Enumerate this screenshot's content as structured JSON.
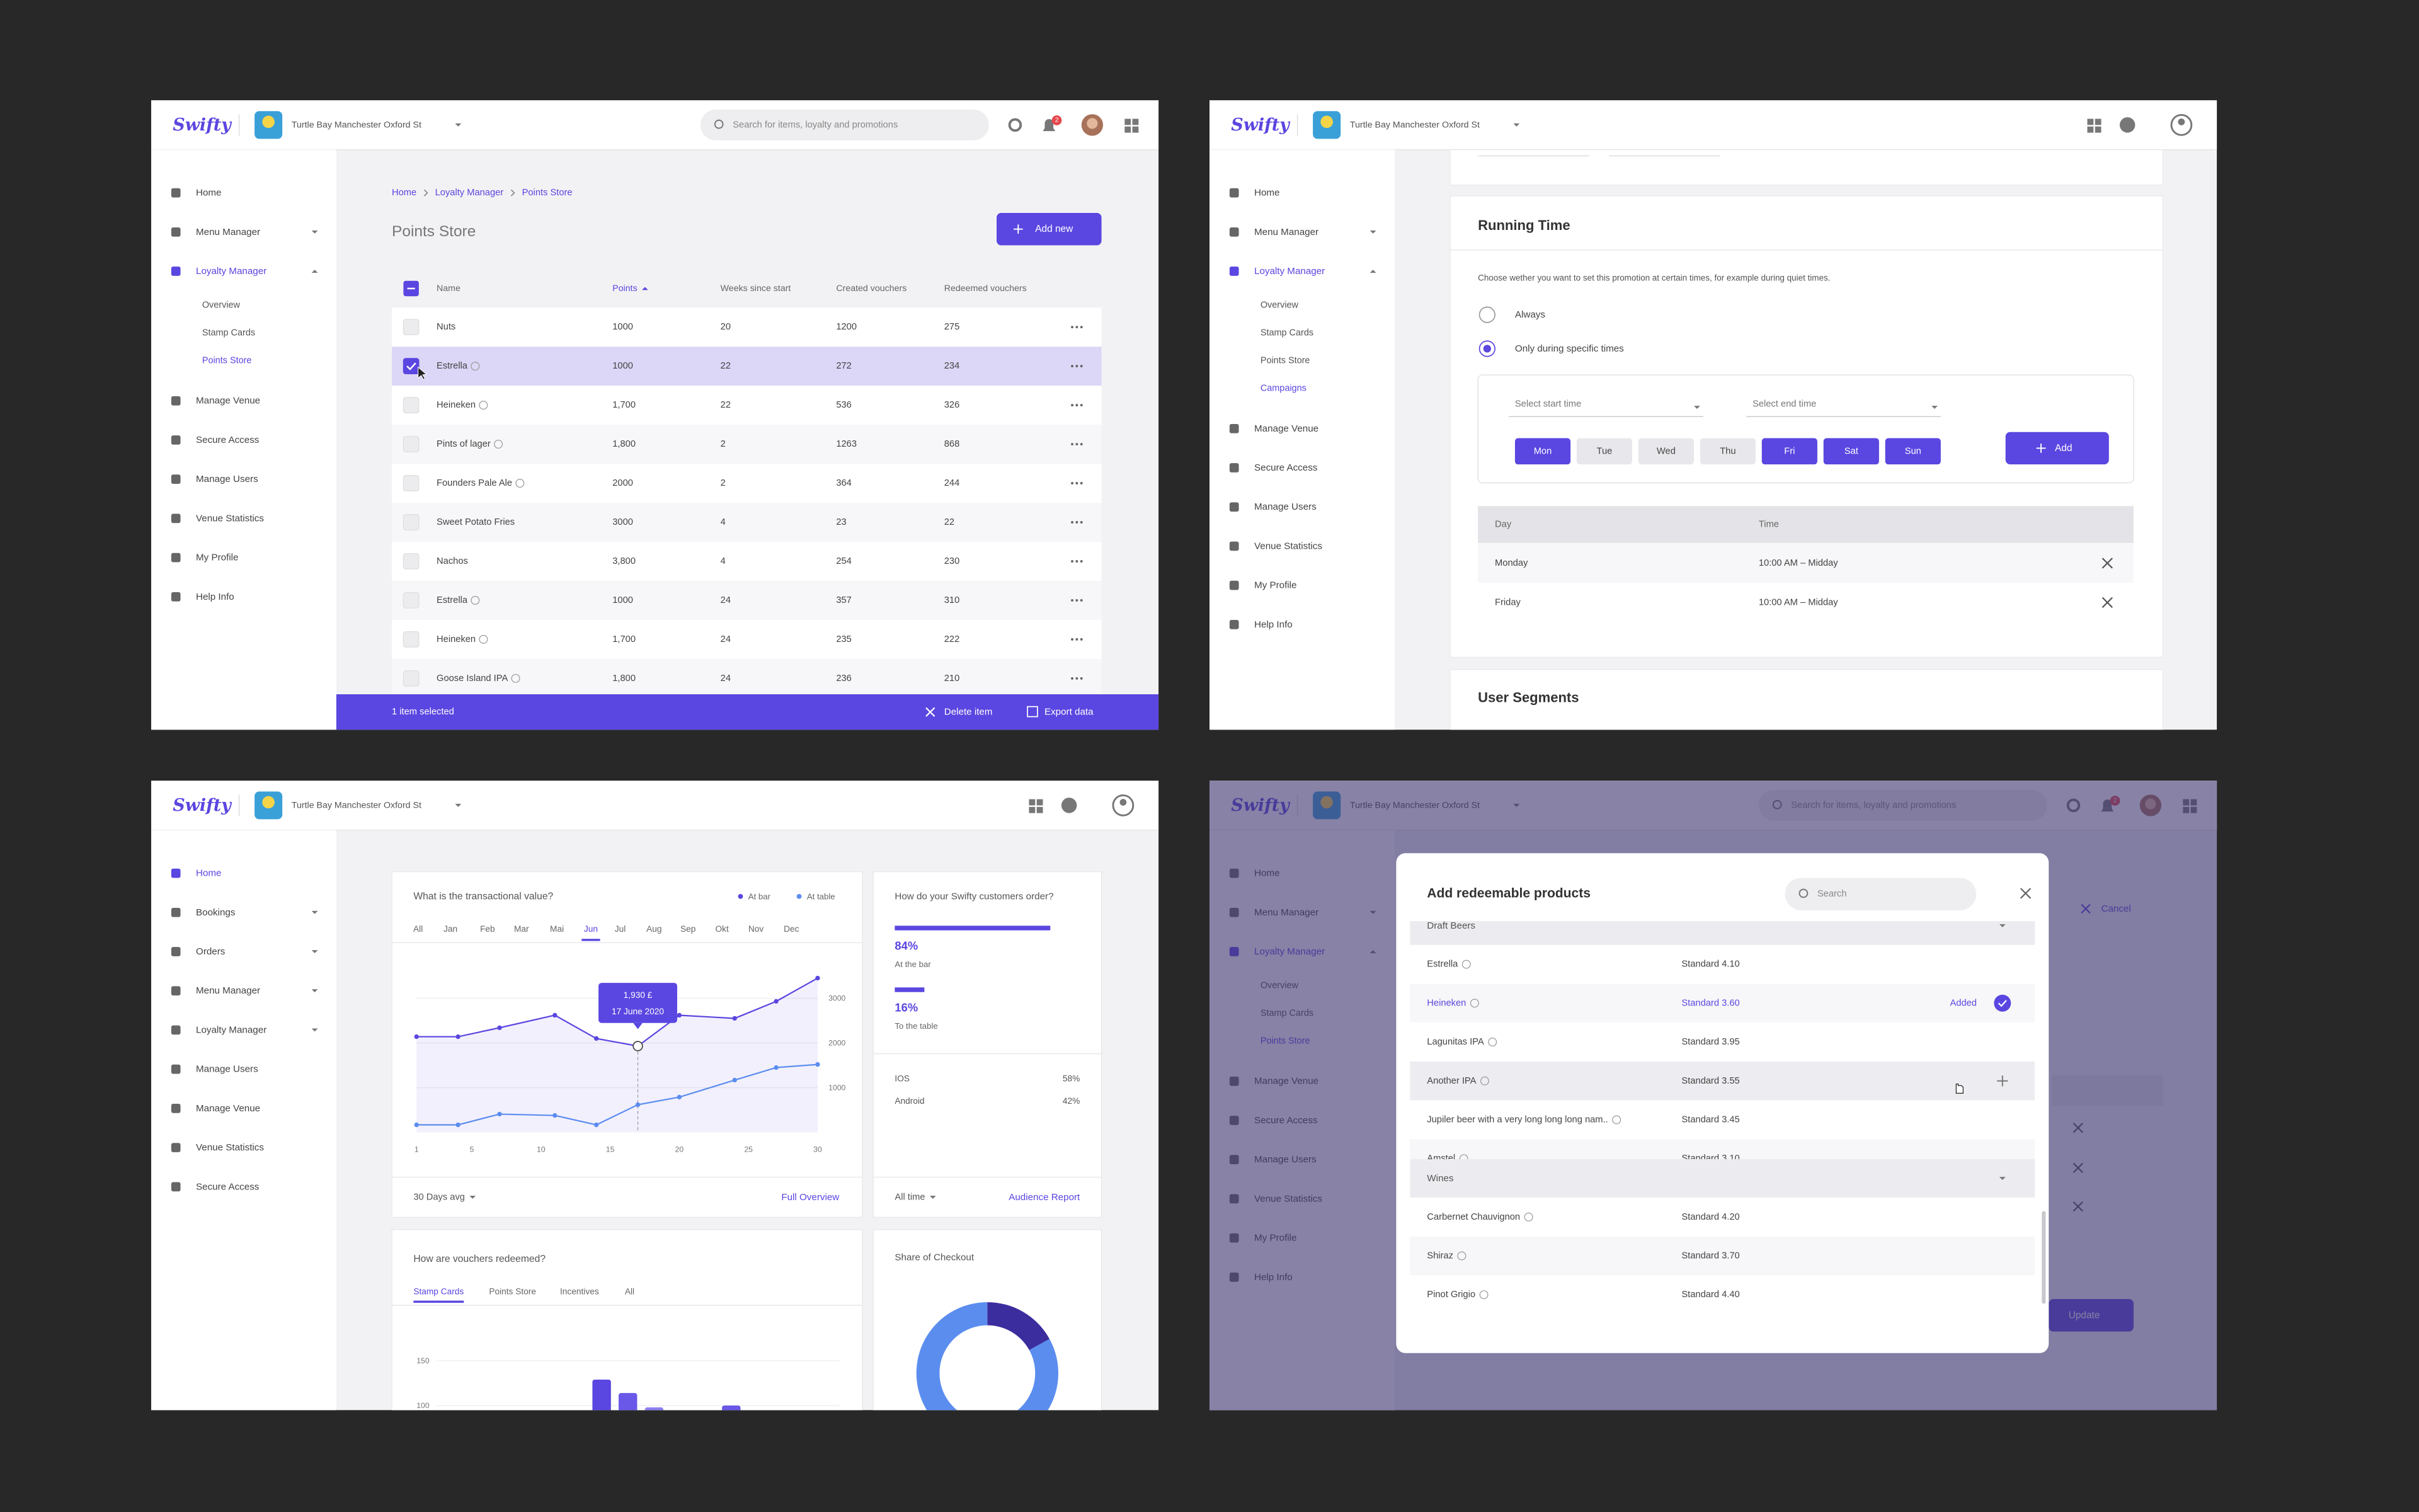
{
  "points_store": {
    "header": {
      "brand": "Swifty",
      "venue": "Turtle Bay Manchester Oxford St",
      "search": "Search for items, loyalty and promotions",
      "notifications": "2"
    },
    "nav": [
      {
        "label": "Home"
      },
      {
        "label": "Menu Manager",
        "expandable": true
      },
      {
        "label": "Loyalty Manager",
        "active": true,
        "expandable": true,
        "expanded": true
      },
      {
        "label": "Overview",
        "sub": true
      },
      {
        "label": "Stamp Cards",
        "sub": true
      },
      {
        "label": "Points Store",
        "sub": true,
        "active": true
      },
      {
        "label": "Manage Venue"
      },
      {
        "label": "Secure Access"
      },
      {
        "label": "Manage Users"
      },
      {
        "label": "Venue Statistics"
      },
      {
        "label": "My Profile"
      },
      {
        "label": "Help Info"
      }
    ],
    "breadcrumb": [
      "Home",
      "Loyalty Manager",
      "Points Store"
    ],
    "title": "Points Store",
    "add_button": "Add new",
    "table": {
      "columns": [
        "Name",
        "Points",
        "Weeks since start",
        "Created vouchers",
        "Redeemed vouchers"
      ],
      "sorted_column": 1,
      "selected_row": 1,
      "badged_rows": [
        1,
        2,
        3,
        4,
        7,
        8,
        9
      ],
      "rows": [
        [
          "Nuts",
          "1000",
          "20",
          "1200",
          "275"
        ],
        [
          "Estrella",
          "1000",
          "22",
          "272",
          "234"
        ],
        [
          "Heineken",
          "1,700",
          "22",
          "536",
          "326"
        ],
        [
          "Pints of lager",
          "1,800",
          "2",
          "1263",
          "868"
        ],
        [
          "Founders Pale Ale",
          "2000",
          "2",
          "364",
          "244"
        ],
        [
          "Sweet Potato Fries",
          "3000",
          "4",
          "23",
          "22"
        ],
        [
          "Nachos",
          "3,800",
          "4",
          "254",
          "230"
        ],
        [
          "Estrella",
          "1000",
          "24",
          "357",
          "310"
        ],
        [
          "Heineken",
          "1,700",
          "24",
          "235",
          "222"
        ],
        [
          "Goose Island IPA",
          "1,800",
          "24",
          "236",
          "210"
        ]
      ]
    },
    "footer": {
      "selection": "1 item selected",
      "delete": "Delete item",
      "export": "Export data"
    }
  },
  "campaign": {
    "header": {
      "brand": "Swifty",
      "venue": "Turtle Bay Manchester Oxford St"
    },
    "nav": [
      {
        "label": "Home"
      },
      {
        "label": "Menu Manager",
        "expandable": true
      },
      {
        "label": "Loyalty Manager",
        "active": true,
        "expandable": true,
        "expanded": true
      },
      {
        "label": "Overview",
        "sub": true
      },
      {
        "label": "Stamp Cards",
        "sub": true
      },
      {
        "label": "Points Store",
        "sub": true
      },
      {
        "label": "Campaigns",
        "sub": true,
        "active": true
      },
      {
        "label": "Manage Venue"
      },
      {
        "label": "Secure Access"
      },
      {
        "label": "Manage Users"
      },
      {
        "label": "Venue Statistics"
      },
      {
        "label": "My Profile"
      },
      {
        "label": "Help Info"
      }
    ],
    "running_time": {
      "title": "Running Time",
      "description": "Choose wether you want to set this promotion at certain times, for example during quiet times.",
      "options": [
        "Always",
        "Only during specific times"
      ],
      "selected_option": 1,
      "start": "Select start time",
      "end": "Select end time",
      "days": [
        "Mon",
        "Tue",
        "Wed",
        "Thu",
        "Fri",
        "Sat",
        "Sun"
      ],
      "selected_days": [
        0,
        4,
        5,
        6
      ],
      "add_button": "Add",
      "table": {
        "columns": [
          "Day",
          "Time"
        ],
        "rows": [
          [
            "Monday",
            "10:00 AM – Midday"
          ],
          [
            "Friday",
            "10:00 AM – Midday"
          ]
        ]
      }
    },
    "next_section": "User Segments"
  },
  "dashboard": {
    "header": {
      "brand": "Swifty",
      "venue": "Turtle Bay Manchester Oxford St"
    },
    "nav": [
      {
        "label": "Home",
        "active": true
      },
      {
        "label": "Bookings",
        "expandable": true
      },
      {
        "label": "Orders",
        "expandable": true
      },
      {
        "label": "Menu Manager",
        "expandable": true
      },
      {
        "label": "Loyalty Manager",
        "expandable": true
      },
      {
        "label": "Manage Users"
      },
      {
        "label": "Manage Venue"
      },
      {
        "label": "Venue Statistics"
      },
      {
        "label": "Secure Access"
      }
    ],
    "chart": {
      "type": "line",
      "title": "What is the transactional value?",
      "months": [
        "All",
        "Jan",
        "Feb",
        "Mar",
        "Mai",
        "Jun",
        "Jul",
        "Aug",
        "Sep",
        "Okt",
        "Nov",
        "Dec"
      ],
      "selected_month": 5,
      "x": [
        1,
        4,
        7,
        11,
        14,
        17,
        20,
        24,
        27,
        30
      ],
      "series": [
        {
          "name": "At bar",
          "color": "#5a46e0",
          "values": [
            2140,
            2140,
            2340,
            2620,
            2100,
            1930,
            2620,
            2550,
            2930,
            3450
          ]
        },
        {
          "name": "At table",
          "color": "#5b8def",
          "values": [
            170,
            170,
            410,
            380,
            170,
            620,
            790,
            1170,
            1450,
            1520
          ]
        }
      ],
      "xlim": [
        1,
        30
      ],
      "xticks": [
        1,
        5,
        10,
        15,
        20,
        25,
        30
      ],
      "ylim": [
        0,
        4000
      ],
      "yticks": [
        1000,
        2000,
        3000
      ],
      "tooltip": {
        "index": 5,
        "value": "1,930 £",
        "date": "17 June 2020"
      },
      "period": "30 Days avg",
      "link": "Full Overview"
    },
    "orders": {
      "title": "How do your Swifty customers order?",
      "xlim": [
        0,
        100
      ],
      "channels": [
        {
          "value": 84,
          "label": "84%",
          "name": "At the bar"
        },
        {
          "value": 16,
          "label": "16%",
          "name": "To the table"
        }
      ],
      "platforms": [
        {
          "name": "IOS",
          "share": "58%"
        },
        {
          "name": "Android",
          "share": "42%"
        }
      ],
      "period": "All time",
      "link": "Audience Report"
    },
    "vouchers": {
      "type": "bar",
      "title": "How are vouchers redeemed?",
      "tabs": [
        "Stamp Cards",
        "Points Store",
        "Incentives",
        "All"
      ],
      "active_tab": 0,
      "ylim": [
        0,
        160
      ],
      "yticks": [
        100,
        150
      ],
      "values": [
        129,
        114,
        98,
        100
      ],
      "colors": [
        "#5a46e0",
        "#6a58e8",
        "#8d7ff0",
        "#6a58e8"
      ]
    },
    "checkout": {
      "type": "pie",
      "title": "Share of Checkout",
      "values": [
        17,
        83
      ],
      "colors": [
        "#3b2d9e",
        "#5b8def"
      ]
    }
  },
  "redeem_modal": {
    "background": {
      "header": {
        "brand": "Swifty",
        "venue": "Turtle Bay Manchester Oxford St",
        "search": "Search for items, loyalty and promotions",
        "notifications": "2"
      },
      "nav": [
        {
          "label": "Home"
        },
        {
          "label": "Menu Manager",
          "expandable": true
        },
        {
          "label": "Loyalty Manager",
          "active": true,
          "expandable": true,
          "expanded": true
        },
        {
          "label": "Overview",
          "sub": true
        },
        {
          "label": "Stamp Cards",
          "sub": true
        },
        {
          "label": "Points Store",
          "sub": true,
          "active": true
        },
        {
          "label": "Manage Venue"
        },
        {
          "label": "Secure Access"
        },
        {
          "label": "Manage Users"
        },
        {
          "label": "Venue Statistics"
        },
        {
          "label": "My Profile"
        },
        {
          "label": "Help Info"
        }
      ],
      "cancel": "Cancel",
      "update": "Update"
    },
    "title": "Add redeemable products",
    "search": "Search",
    "added_label": "Added",
    "groups": [
      {
        "name": "Draft Beers",
        "items": [
          {
            "name": "Estrella",
            "price": "Standard 4.10"
          },
          {
            "name": "Heineken",
            "price": "Standard 3.60",
            "added": true
          },
          {
            "name": "Lagunitas IPA",
            "price": "Standard 3.95"
          },
          {
            "name": "Another IPA",
            "price": "Standard 3.55",
            "hover": true
          },
          {
            "name": "Jupiler beer with a very long long long nam..",
            "price": "Standard 3.45"
          },
          {
            "name": "Amstel",
            "price": "Standard 3.10"
          }
        ]
      },
      {
        "name": "Wines",
        "items": [
          {
            "name": "Carbernet Chauvignon",
            "price": "Standard 4.20"
          },
          {
            "name": "Shiraz",
            "price": "Standard 3.70"
          },
          {
            "name": "Pinot Grigio",
            "price": "Standard 4.40"
          }
        ]
      }
    ]
  }
}
